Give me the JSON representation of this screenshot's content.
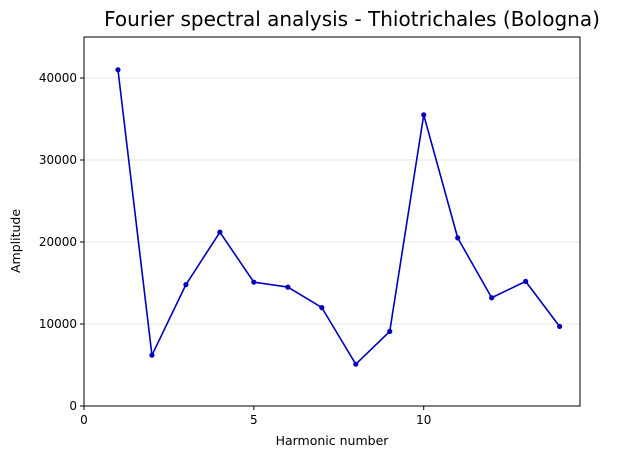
{
  "chart_data": {
    "type": "line",
    "title": "Fourier spectral analysis - Thiotrichales (Bologna)",
    "xlabel": "Harmonic number",
    "ylabel": "Amplitude",
    "x": [
      1,
      2,
      3,
      4,
      5,
      6,
      7,
      8,
      9,
      10,
      11,
      12,
      13,
      14
    ],
    "series": [
      {
        "values": [
          41000,
          6200,
          14800,
          21200,
          15100,
          14500,
          12000,
          5100,
          9100,
          35500,
          20500,
          13200,
          15200,
          9700
        ],
        "color": "#0000bb"
      }
    ],
    "xlim": [
      0,
      14.6
    ],
    "ylim": [
      0,
      45000
    ],
    "xticks": [
      0,
      5,
      10
    ],
    "yticks": [
      0,
      10000,
      20000,
      30000,
      40000
    ],
    "grid": "horizontal",
    "legend": "none"
  }
}
